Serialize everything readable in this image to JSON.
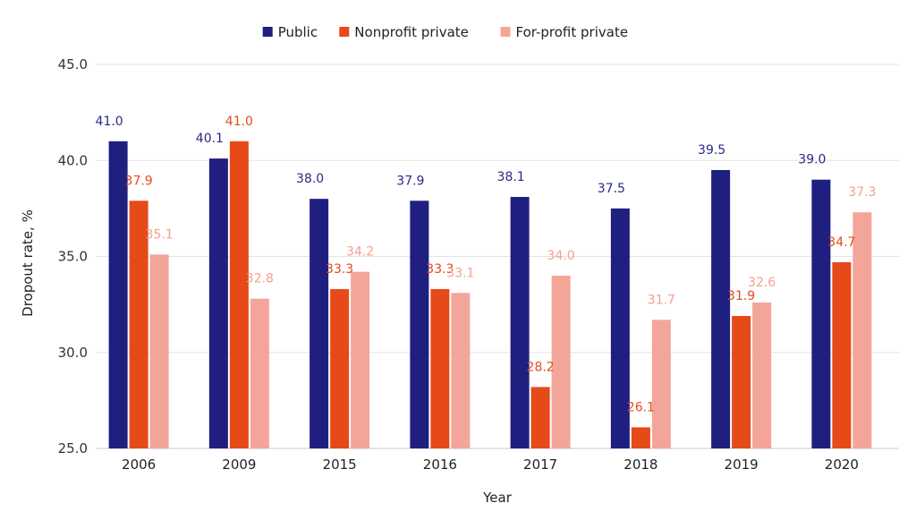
{
  "chart_data": {
    "type": "bar",
    "title": "",
    "xlabel": "Year",
    "ylabel": "Dropout rate, %",
    "ylim": [
      25.0,
      45.0
    ],
    "yticks": [
      "25.0",
      "30.0",
      "35.0",
      "40.0",
      "45.0"
    ],
    "grid": true,
    "legend_position": "top-center",
    "categories": [
      "2006",
      "2009",
      "2015",
      "2016",
      "2017",
      "2018",
      "2019",
      "2020"
    ],
    "series": [
      {
        "name": "Public",
        "color": "#1f1f80",
        "label_color": "#2a2a85",
        "values": [
          41.0,
          40.1,
          38.0,
          37.9,
          38.1,
          37.5,
          39.5,
          39.0
        ]
      },
      {
        "name": "Nonprofit private",
        "color": "#e64a19",
        "label_color": "#e64a19",
        "values": [
          37.9,
          41.0,
          33.3,
          33.3,
          28.2,
          26.1,
          31.9,
          34.7
        ]
      },
      {
        "name": "For-profit private",
        "color": "#f4a599",
        "label_color": "#f4a08f",
        "values": [
          35.1,
          32.8,
          34.2,
          33.1,
          34.0,
          31.7,
          32.6,
          37.3
        ]
      }
    ]
  }
}
